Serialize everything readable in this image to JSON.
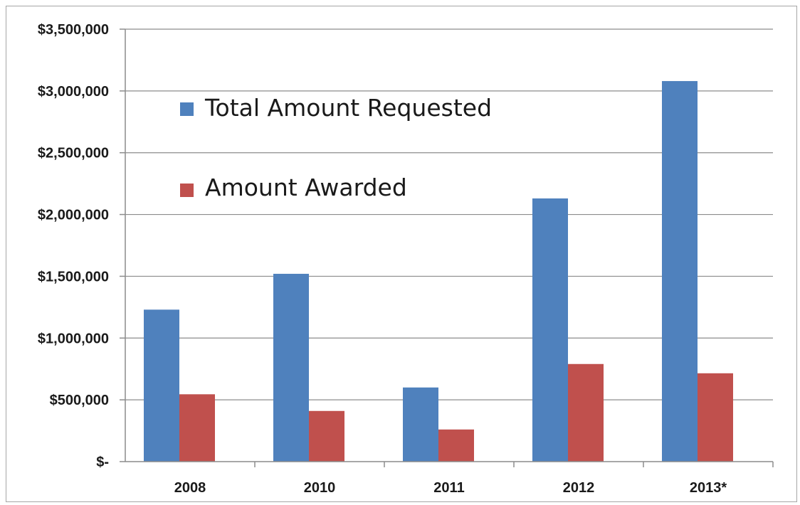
{
  "chart_data": {
    "type": "bar",
    "categories": [
      "2008",
      "2010",
      "2011",
      "2012",
      "2013*"
    ],
    "series": [
      {
        "name": "Total Amount Requested",
        "color": "#4f81bd",
        "values": [
          1230000,
          1520000,
          600000,
          2130000,
          3080000
        ]
      },
      {
        "name": "Amount Awarded",
        "color": "#c0504d",
        "values": [
          545000,
          410000,
          260000,
          790000,
          715000
        ]
      }
    ],
    "ylim": [
      0,
      3500000
    ],
    "yticks": [
      0,
      500000,
      1000000,
      1500000,
      2000000,
      2500000,
      3000000,
      3500000
    ],
    "ytick_labels": [
      "$-",
      "$500,000",
      "$1,000,000",
      "$1,500,000",
      "$2,000,000",
      "$2,500,000",
      "$3,000,000",
      "$3,500,000"
    ],
    "grid": true,
    "legend_position": "top-left inside plot",
    "title": "",
    "xlabel": "",
    "ylabel": ""
  }
}
